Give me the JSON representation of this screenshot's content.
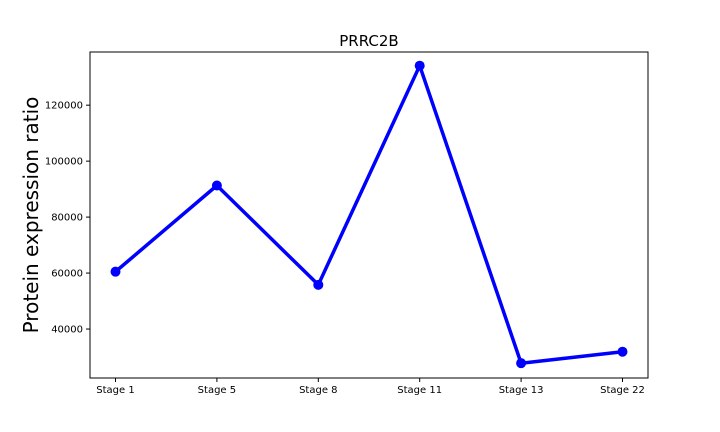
{
  "chart_data": {
    "type": "line",
    "title": "PRRC2B",
    "xlabel": "",
    "ylabel": "Protein expression ratio",
    "categories": [
      "Stage 1",
      "Stage 5",
      "Stage 8",
      "Stage 11",
      "Stage 13",
      "Stage 22"
    ],
    "series": [
      {
        "values": [
          60500,
          91300,
          55800,
          134100,
          27800,
          31900
        ],
        "color": "#0000ff"
      }
    ],
    "ylim": [
      22500,
      139000
    ],
    "yticks": [
      40000,
      60000,
      80000,
      100000,
      120000
    ],
    "ytick_labels": [
      "40000",
      "60000",
      "80000",
      "100000",
      "120000"
    ],
    "grid": false,
    "legend": "none"
  }
}
